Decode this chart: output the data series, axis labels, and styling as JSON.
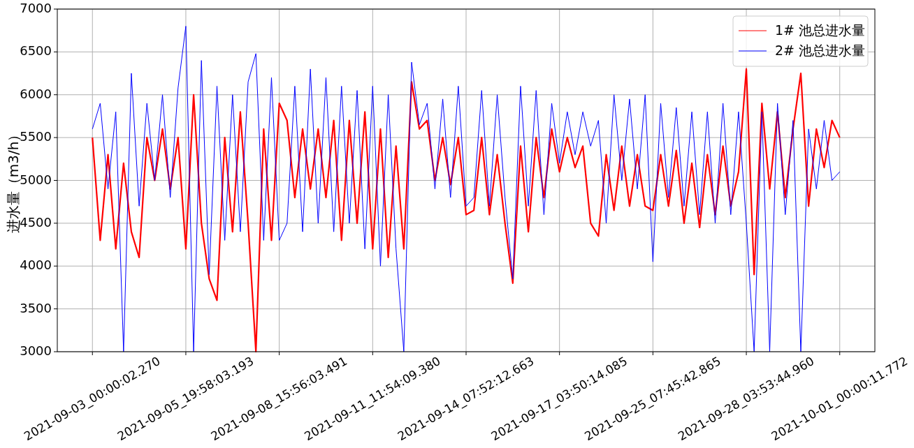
{
  "chart_data": {
    "type": "line",
    "ylabel": "进水量（m3/h）",
    "legend": "top right",
    "grid": true,
    "ylim": [
      3000,
      7000
    ],
    "yticks": [
      3000,
      3500,
      4000,
      4500,
      5000,
      5500,
      6000,
      6500,
      7000
    ],
    "categories": [
      "2021-09-03_00:00:02.270",
      null,
      null,
      null,
      null,
      null,
      null,
      null,
      null,
      null,
      null,
      null,
      "2021-09-05_19:58:03.193",
      null,
      null,
      null,
      null,
      null,
      null,
      null,
      null,
      null,
      null,
      null,
      "2021-09-08_15:56:03.491",
      null,
      null,
      null,
      null,
      null,
      null,
      null,
      null,
      null,
      null,
      null,
      "2021-09-11_11:54:09.380",
      null,
      null,
      null,
      null,
      null,
      null,
      null,
      null,
      null,
      null,
      null,
      "2021-09-14_07:52:12.663",
      null,
      null,
      null,
      null,
      null,
      null,
      null,
      null,
      null,
      null,
      null,
      "2021-09-17_03:50:14.085",
      null,
      null,
      null,
      null,
      null,
      null,
      null,
      null,
      null,
      null,
      null,
      "2021-09-25_07:45:42.865",
      null,
      null,
      null,
      null,
      null,
      null,
      null,
      null,
      null,
      null,
      null,
      "2021-09-28_03:53:44.960",
      null,
      null,
      null,
      null,
      null,
      null,
      null,
      null,
      null,
      null,
      null,
      "2021-10-01_00:00:11.772"
    ],
    "series": [
      {
        "name": "1# 池总进水量",
        "color": "#ff0000",
        "values": [
          5500,
          4300,
          5300,
          4200,
          5200,
          4400,
          4100,
          5500,
          5000,
          5600,
          4900,
          5500,
          4200,
          6000,
          4500,
          3850,
          3600,
          5500,
          4400,
          5800,
          4500,
          3000,
          5600,
          4300,
          5900,
          5700,
          4800,
          5600,
          4900,
          5600,
          4800,
          5700,
          4300,
          5700,
          4500,
          5800,
          4200,
          5600,
          4100,
          5400,
          4200,
          6150,
          5600,
          5700,
          5000,
          5500,
          4950,
          5500,
          4600,
          4650,
          5500,
          4600,
          5300,
          4500,
          3800,
          5400,
          4400,
          5500,
          4800,
          5600,
          5100,
          5500,
          5150,
          5400,
          4500,
          4350,
          5300,
          4650,
          5400,
          4700,
          5300,
          4700,
          4650,
          5300,
          4700,
          5350,
          4500,
          5200,
          4450,
          5300,
          4600,
          5400,
          4700,
          5100,
          6300,
          3900,
          5900,
          4900,
          5800,
          4800,
          5600,
          6250,
          4700,
          5600,
          5150,
          5700,
          5500
        ]
      },
      {
        "name": "2# 池总进水量",
        "color": "#0000ff",
        "values": [
          5600,
          5900,
          4900,
          5800,
          3000,
          6250,
          4700,
          5900,
          5000,
          6000,
          4800,
          6080,
          6800,
          3000,
          6400,
          3900,
          6100,
          4300,
          6000,
          4400,
          6150,
          6480,
          4300,
          6200,
          4300,
          4500,
          6100,
          4400,
          6300,
          4500,
          6200,
          4400,
          6100,
          4500,
          6050,
          4200,
          6100,
          4000,
          6000,
          4200,
          3000,
          6380,
          5650,
          5900,
          4900,
          5950,
          4800,
          6100,
          4700,
          4800,
          6050,
          4700,
          6000,
          4800,
          3850,
          6100,
          4700,
          6050,
          4600,
          5900,
          5200,
          5800,
          5300,
          5800,
          5400,
          5700,
          4500,
          6000,
          5000,
          5950,
          4900,
          6000,
          4050,
          5900,
          4800,
          5850,
          4700,
          5800,
          4600,
          5800,
          4500,
          5900,
          4600,
          5800,
          4500,
          3000,
          5800,
          3000,
          5900,
          4600,
          5700,
          3000,
          5600,
          4900,
          5700,
          5000,
          5100
        ]
      }
    ]
  }
}
